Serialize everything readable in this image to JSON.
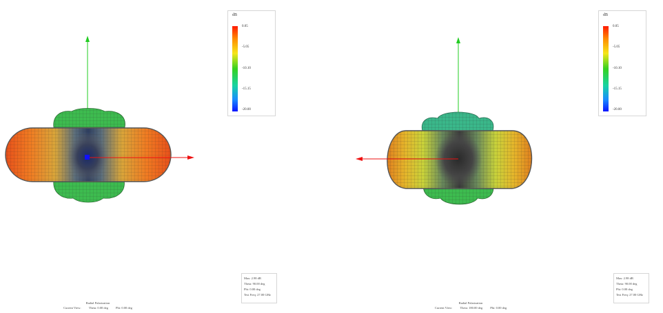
{
  "panels": [
    {
      "id": "left",
      "legend": {
        "title": "dB",
        "ticks": [
          "0.05",
          "-5.05",
          "-10.10",
          "-15.15",
          "-20.00"
        ]
      },
      "info": [
        "Max: 2.98 dB",
        "Theta: 90.00 deg",
        "Phi: 0.00 deg",
        "Test Freq: 27.00 GHz"
      ],
      "caption": {
        "title": "Radial Polarization",
        "current_view": "Current View:",
        "theta": "Theta: 0.00 deg",
        "phi": "Phi: 0.00 deg"
      }
    },
    {
      "id": "right",
      "legend": {
        "title": "dB",
        "ticks": [
          "0.05",
          "-5.05",
          "-10.10",
          "-15.15",
          "-20.00"
        ]
      },
      "info": [
        "Max: 2.98 dB",
        "Theta: 90.00 deg",
        "Phi: 0.00 deg",
        "Test Freq: 27.00 GHz"
      ],
      "caption": {
        "title": "Radial Polarization",
        "current_view": "Current View:",
        "theta": "Theta: 180.00 deg",
        "phi": "Phi: 0.00 deg"
      }
    }
  ],
  "colors": {
    "axis_vertical": "#22cc22",
    "axis_horizontal": "#ee1111",
    "center_marker": "#1111ff",
    "mesh_line": "#333333"
  },
  "icons": {
    "center": "origin-marker-icon",
    "arrow": "axis-arrow-icon"
  }
}
